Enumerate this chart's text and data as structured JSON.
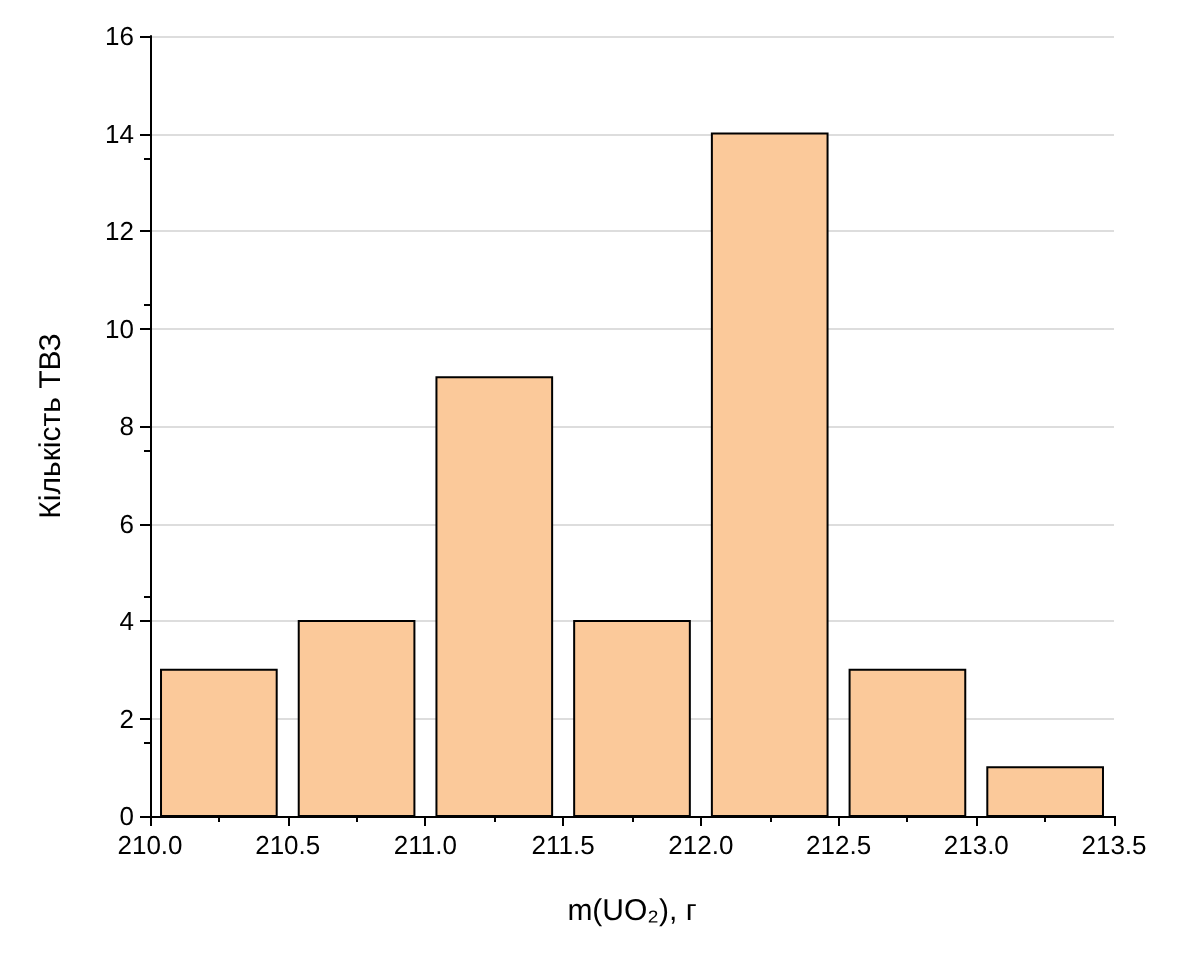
{
  "chart_data": {
    "type": "histogram",
    "xlabel": "m(UO₂), г",
    "ylabel": "Кількість ТВЗ",
    "bins": [
      210.0,
      210.5,
      211.0,
      211.5,
      212.0,
      212.5,
      213.0,
      213.5
    ],
    "values": [
      3,
      4,
      9,
      4,
      14,
      3,
      1
    ],
    "color": "#fbc99a",
    "xlim": [
      210.0,
      213.5
    ],
    "xticks": [
      {
        "value": 210.0,
        "label": "210.0"
      },
      {
        "value": 210.5,
        "label": "210.5"
      },
      {
        "value": 211.0,
        "label": "211.0"
      },
      {
        "value": 211.5,
        "label": "211.5"
      },
      {
        "value": 212.0,
        "label": "212.0"
      },
      {
        "value": 212.5,
        "label": "212.5"
      },
      {
        "value": 213.0,
        "label": "213.0"
      },
      {
        "value": 213.5,
        "label": "213.5"
      }
    ],
    "ylim": [
      0,
      16
    ],
    "yticks": [
      0,
      2,
      4,
      6,
      8,
      10,
      12,
      14,
      16
    ],
    "grid": "y"
  }
}
